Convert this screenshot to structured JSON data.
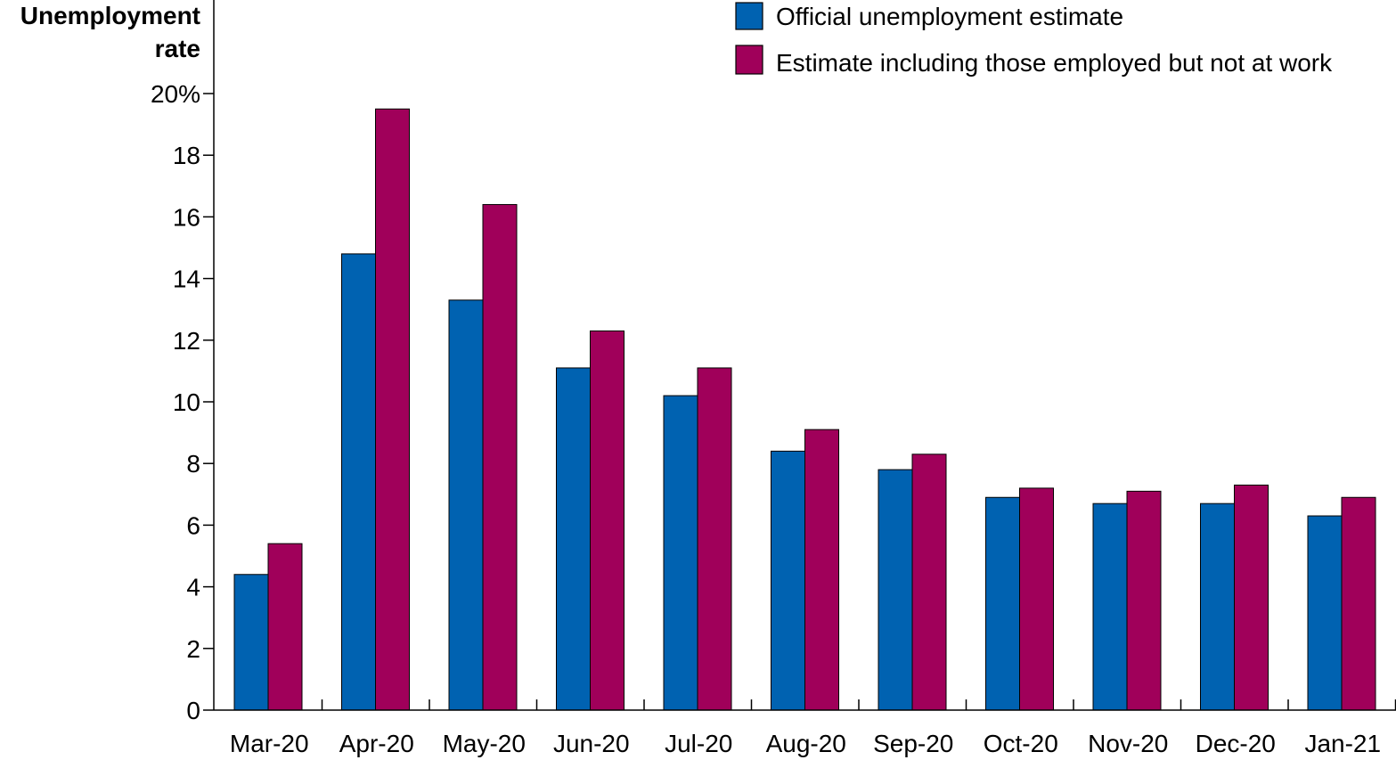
{
  "chart_data": {
    "type": "bar",
    "ylabel_lines": [
      "Unemployment",
      "rate"
    ],
    "categories": [
      "Mar-20",
      "Apr-20",
      "May-20",
      "Jun-20",
      "Jul-20",
      "Aug-20",
      "Sep-20",
      "Oct-20",
      "Nov-20",
      "Dec-20",
      "Jan-21"
    ],
    "series": [
      {
        "name": "Official unemployment estimate",
        "color": "#0062b1",
        "values": [
          4.4,
          14.8,
          13.3,
          11.1,
          10.2,
          8.4,
          7.8,
          6.9,
          6.7,
          6.7,
          6.3
        ]
      },
      {
        "name": "Estimate including those employed but not at work",
        "color": "#a0005a",
        "values": [
          5.4,
          19.5,
          16.4,
          12.3,
          11.1,
          9.1,
          8.3,
          7.2,
          7.1,
          7.3,
          6.9
        ]
      }
    ],
    "ylim": [
      0,
      20
    ],
    "yticks": [
      0,
      2,
      4,
      6,
      8,
      10,
      12,
      14,
      16,
      18,
      20
    ],
    "ytick_labels": [
      "0",
      "2",
      "4",
      "6",
      "8",
      "10",
      "12",
      "14",
      "16",
      "18",
      "20%"
    ],
    "grid": false,
    "legend_position": "top-right"
  }
}
